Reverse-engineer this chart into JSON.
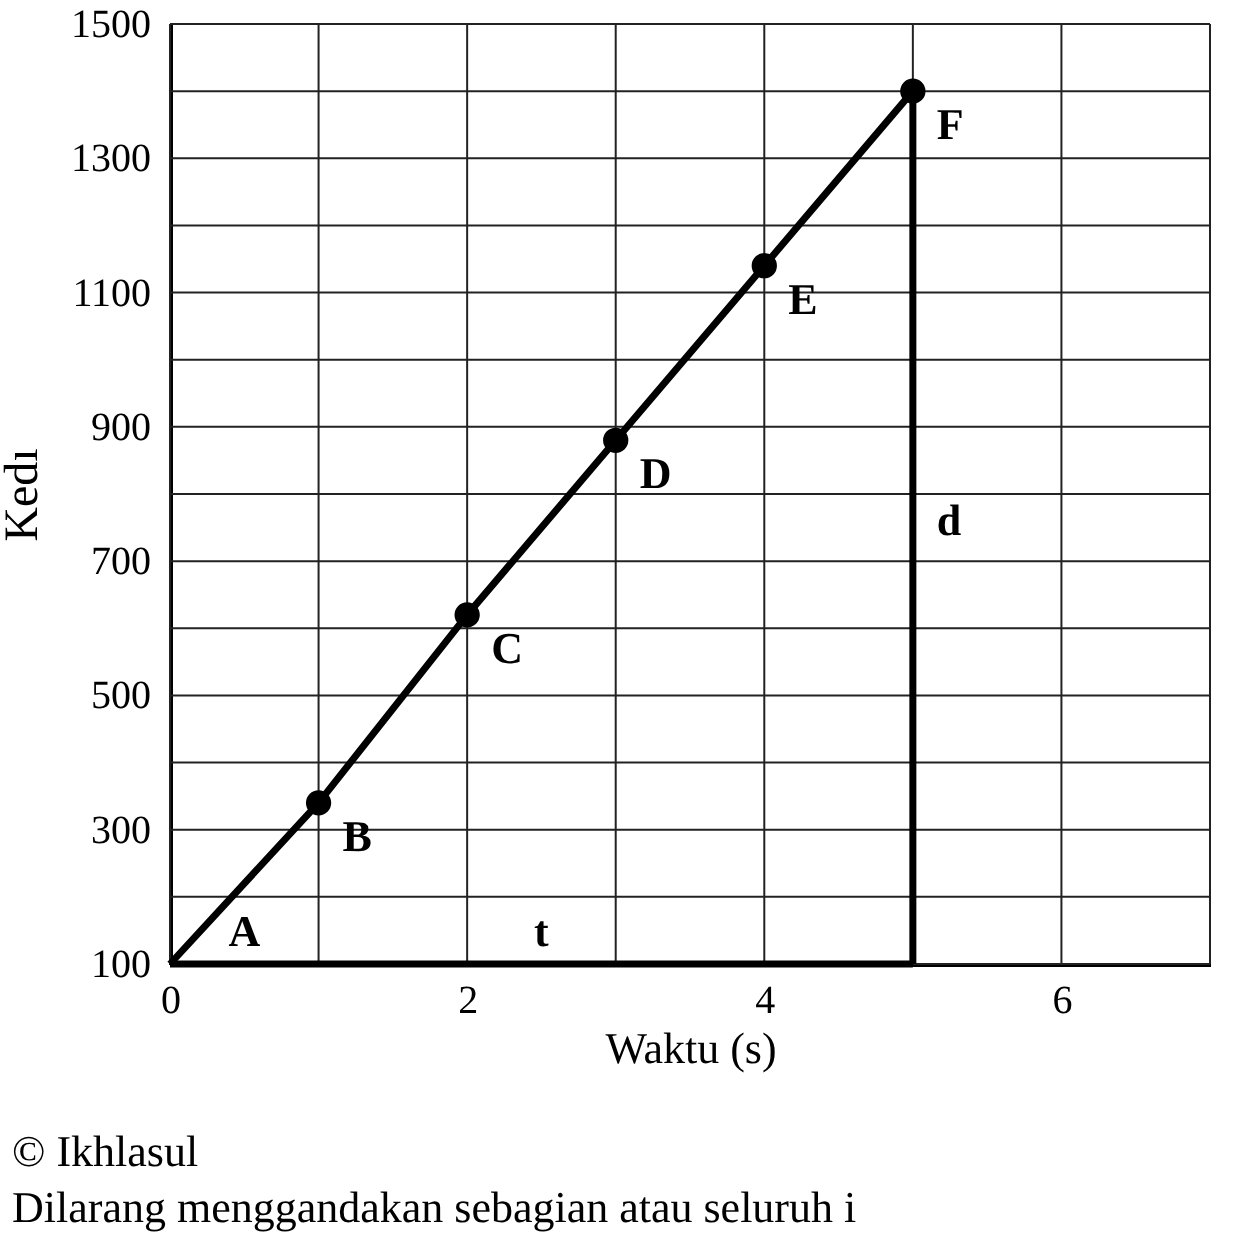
{
  "chart_data": {
    "type": "line",
    "xlabel": "Waktu (s)",
    "ylabel": "Kedı",
    "xlim": [
      0,
      7
    ],
    "xticks": [
      0,
      {
        "value": 1,
        "label": null
      },
      2,
      {
        "value": 3,
        "label": null
      },
      4,
      {
        "value": 5,
        "label": null
      },
      6,
      {
        "value": 7,
        "label": null
      }
    ],
    "ylim": [
      100,
      1500
    ],
    "yticks": [
      100,
      {
        "value": 200,
        "label": null
      },
      300,
      {
        "value": 400,
        "label": null
      },
      500,
      {
        "value": 600,
        "label": null
      },
      700,
      {
        "value": 800,
        "label": null
      },
      900,
      {
        "value": 1000,
        "label": null
      },
      1100,
      {
        "value": 1200,
        "label": null
      },
      1300,
      {
        "value": 1400,
        "label": null
      },
      1500
    ],
    "grid": true,
    "series": [
      {
        "color": "#000000",
        "x": [
          0,
          1,
          2,
          3,
          4,
          5
        ],
        "values": [
          100,
          340,
          620,
          880,
          1140,
          1400
        ]
      },
      {
        "type": "scatter",
        "marker": "circle",
        "color": "#000000",
        "x": [
          1,
          2,
          3,
          4,
          5
        ],
        "values": [
          340,
          620,
          880,
          1140,
          1400
        ]
      },
      {
        "color": "#000000",
        "x": [
          0,
          5
        ],
        "values": [
          100,
          100
        ]
      },
      {
        "color": "#000000",
        "x": [
          5,
          5
        ],
        "values": [
          100,
          1400
        ]
      }
    ],
    "annotations": [
      {
        "text": "A",
        "x": 0.5,
        "y": 100
      },
      {
        "text": "B",
        "x": 1,
        "y": 340
      },
      {
        "text": "C",
        "x": 2,
        "y": 620
      },
      {
        "text": "D",
        "x": 3,
        "y": 880
      },
      {
        "text": "E",
        "x": 4,
        "y": 1140
      },
      {
        "text": "F",
        "x": 5,
        "y": 1400
      },
      {
        "text": "d",
        "x": 5,
        "y": 811
      },
      {
        "text": "t",
        "x": 2.5,
        "y": 100
      },
      "© Ikhlasul",
      "Dilarang menggandakan sebagian atau seluruh i"
    ]
  }
}
